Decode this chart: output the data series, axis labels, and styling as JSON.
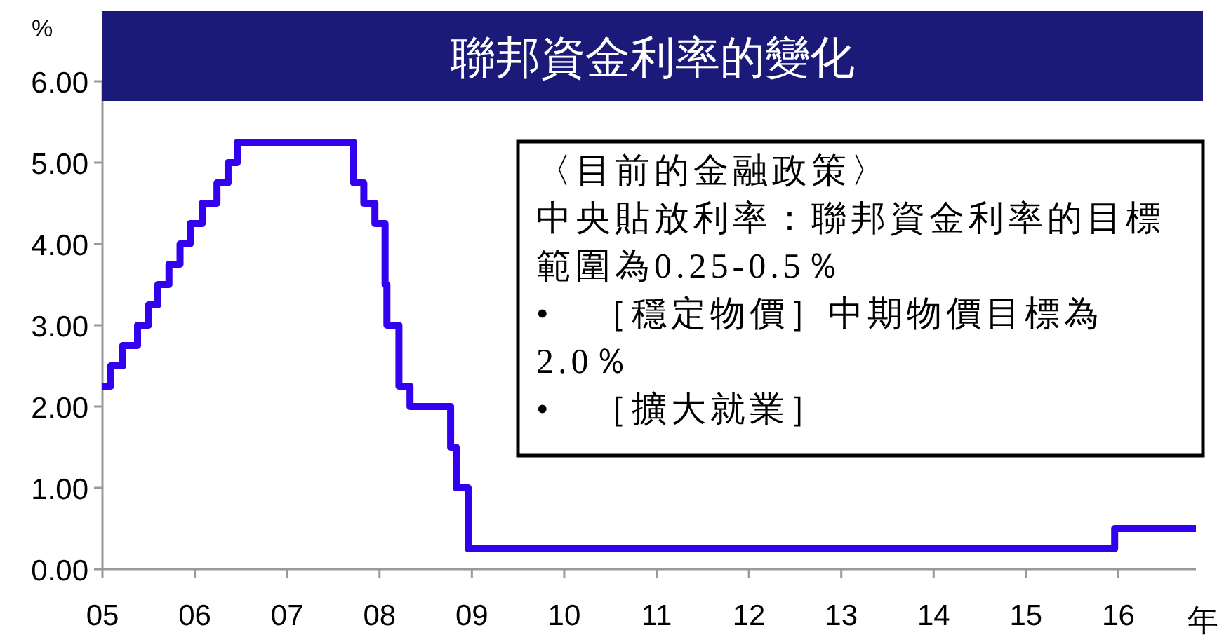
{
  "chart_data": {
    "type": "step",
    "title": "聯邦資金利率的變化",
    "xlabel": "年",
    "ylabel": "%",
    "x": [
      2005.0,
      2005.09,
      2005.22,
      2005.38,
      2005.5,
      2005.6,
      2005.72,
      2005.84,
      2005.95,
      2006.08,
      2006.24,
      2006.36,
      2006.46,
      2007.72,
      2007.83,
      2007.95,
      2008.06,
      2008.08,
      2008.21,
      2008.33,
      2008.77,
      2008.83,
      2008.96,
      2015.96,
      2016.84
    ],
    "values": [
      2.25,
      2.5,
      2.75,
      3.0,
      3.25,
      3.5,
      3.75,
      4.0,
      4.25,
      4.5,
      4.75,
      5.0,
      5.25,
      4.75,
      4.5,
      4.25,
      3.5,
      3.0,
      2.25,
      2.0,
      1.5,
      1.0,
      0.25,
      0.5,
      0.5
    ],
    "color": "#3300f0",
    "xlim": [
      2005,
      2016.84
    ],
    "xticks": [
      {
        "value": 2005,
        "label": "05"
      },
      {
        "value": 2006,
        "label": "06"
      },
      {
        "value": 2007,
        "label": "07"
      },
      {
        "value": 2008,
        "label": "08"
      },
      {
        "value": 2009,
        "label": "09"
      },
      {
        "value": 2010,
        "label": "10"
      },
      {
        "value": 2011,
        "label": "11"
      },
      {
        "value": 2012,
        "label": "12"
      },
      {
        "value": 2013,
        "label": "13"
      },
      {
        "value": 2014,
        "label": "14"
      },
      {
        "value": 2015,
        "label": "15"
      },
      {
        "value": 2016,
        "label": "16"
      }
    ],
    "ylim": [
      0,
      6
    ],
    "yticks": [
      {
        "value": 0,
        "label": "0.00"
      },
      {
        "value": 1,
        "label": "1.00"
      },
      {
        "value": 2,
        "label": "2.00"
      },
      {
        "value": 3,
        "label": "3.00"
      },
      {
        "value": 4,
        "label": "4.00"
      },
      {
        "value": 5,
        "label": "5.00"
      },
      {
        "value": 6,
        "label": "6.00"
      }
    ],
    "annotations": [
      "〈目前的金融政策〉",
      "中央貼放利率：聯邦資金利率的目標範圍為0.25-0.5％",
      "•　［穩定物價］中期物價目標為2.0％",
      "•　［擴大就業］"
    ]
  }
}
